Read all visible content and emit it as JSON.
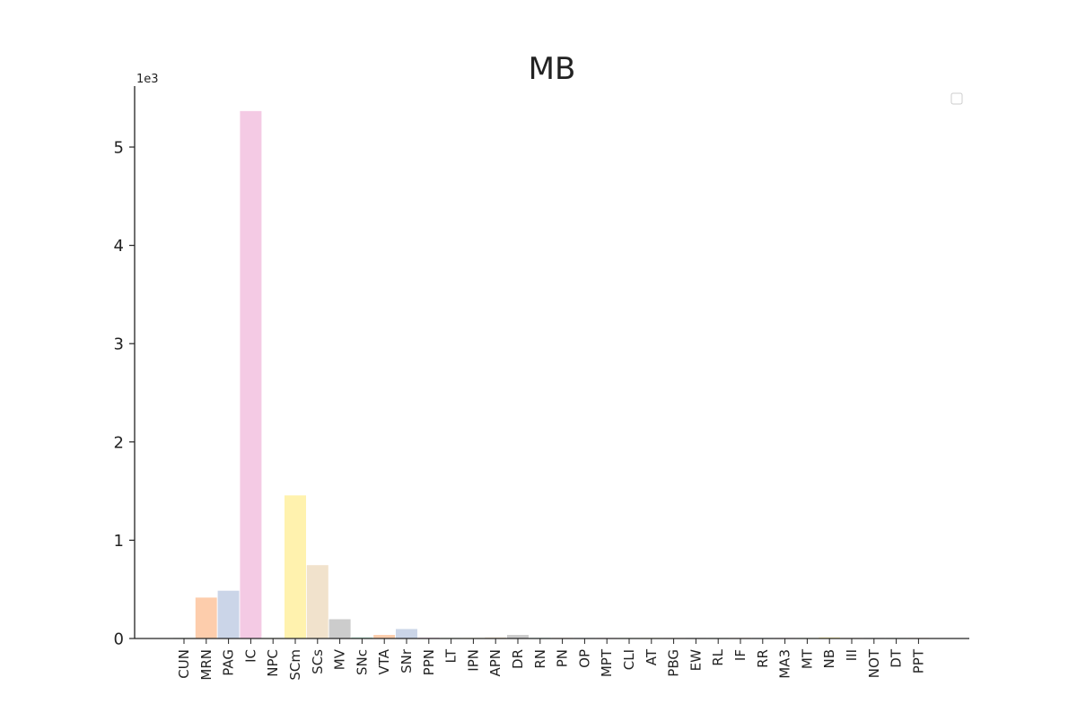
{
  "chart_data": {
    "type": "bar",
    "title": "MB",
    "xlabel": "",
    "ylabel": "",
    "y_scale_label": "1e3",
    "ylim": [
      0,
      5.6
    ],
    "yticks": [
      "0",
      "1",
      "2",
      "3",
      "4",
      "5"
    ],
    "ytick_values": [
      0,
      1,
      2,
      3,
      4,
      5
    ],
    "grid": false,
    "legend": "top-right (empty)",
    "categories": [
      "CUN",
      "MRN",
      "PAG",
      "IC",
      "NPC",
      "SCm",
      "SCs",
      "MV",
      "SNc",
      "VTA",
      "SNr",
      "PPN",
      "LT",
      "IPN",
      "APN",
      "DR",
      "RN",
      "PN",
      "OP",
      "MPT",
      "CLI",
      "AT",
      "PBG",
      "EW",
      "RL",
      "IF",
      "RR",
      "MA3",
      "MT",
      "NB",
      "III",
      "NOT",
      "DT",
      "PPT"
    ],
    "values": [
      0.005,
      0.42,
      0.49,
      5.37,
      0.005,
      1.46,
      0.75,
      0.2,
      0.015,
      0.04,
      0.1,
      0.012,
      0.004,
      0.008,
      0.015,
      0.04,
      0.01,
      0.008,
      0.004,
      0.004,
      0.003,
      0.002,
      0.002,
      0.002,
      0.002,
      0.002,
      0.002,
      0.002,
      0.002,
      0.015,
      0.002,
      0.002,
      0.002,
      0.002
    ],
    "colors": [
      "#b3e2cd",
      "#fdcdac",
      "#cbd5e8",
      "#f4cae4",
      "#e6f5c9",
      "#fff2ae",
      "#f1e2cc",
      "#cccccc",
      "#b3e2cd",
      "#fdcdac",
      "#cbd5e8",
      "#f4cae4",
      "#e6f5c9",
      "#fff2ae",
      "#f1e2cc",
      "#cccccc",
      "#b3e2cd",
      "#fdcdac",
      "#cbd5e8",
      "#f4cae4",
      "#e6f5c9",
      "#fff2ae",
      "#f1e2cc",
      "#cccccc",
      "#b3e2cd",
      "#fdcdac",
      "#cbd5e8",
      "#f4cae4",
      "#e6f5c9",
      "#fff2ae",
      "#f1e2cc",
      "#cccccc",
      "#b3e2cd",
      "#fdcdac"
    ]
  }
}
